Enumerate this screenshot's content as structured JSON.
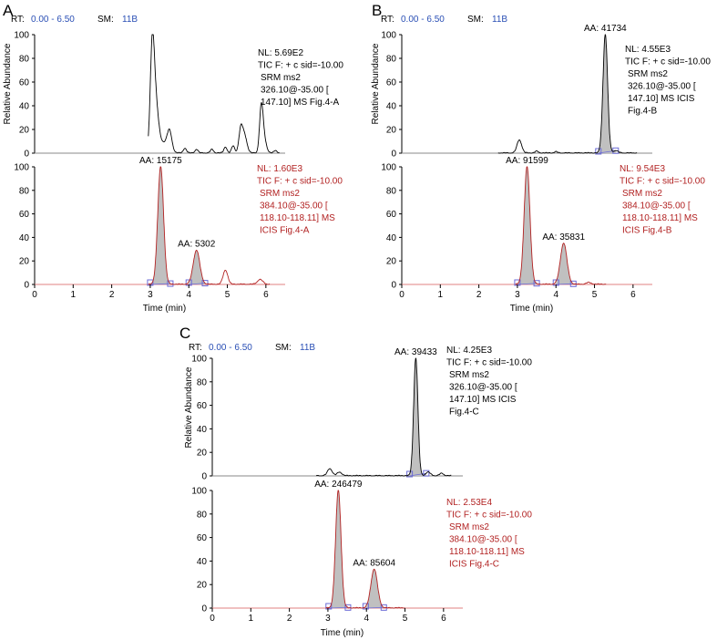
{
  "colors": {
    "black": "#000000",
    "red": "#b22222",
    "blue": "#2a4fb5",
    "fill": "#c0c0c0",
    "box": "#6b6bd6"
  },
  "chart_data": [
    {
      "panel": "A",
      "type": "line",
      "header": {
        "rt_label": "RT:",
        "rt_range": "0.00 - 6.50",
        "sm_label": "SM:",
        "sm_value": "11B"
      },
      "xlabel": "Time (min)",
      "ylabel": "Relative Abundance",
      "xlim": [
        0,
        6.5
      ],
      "ylim": [
        0,
        100
      ],
      "xticks": [
        0,
        1,
        2,
        3,
        4,
        5,
        6
      ],
      "yticks_top": [
        0,
        20,
        40,
        60,
        80,
        100
      ],
      "yticks_bottom": [
        0,
        20,
        40,
        60,
        80,
        100
      ],
      "traces": [
        {
          "name": "326.10 > 147.10",
          "info": [
            "NL: 5.69E2",
            "TIC F: + c sid=-10.00",
            "SRM ms2",
            "326.10@-35.00 [",
            "147.10]  MS Fig.4-A"
          ],
          "peaks": [
            {
              "rt": 3.05,
              "height": 68,
              "width": 0.05
            },
            {
              "rt": 3.12,
              "height": 48,
              "width": 0.08
            },
            {
              "rt": 3.5,
              "height": 16,
              "width": 0.06
            },
            {
              "rt": 3.35,
              "height": 8,
              "width": 0.12
            },
            {
              "rt": 5.35,
              "height": 20,
              "width": 0.05
            },
            {
              "rt": 5.45,
              "height": 14,
              "width": 0.06
            },
            {
              "rt": 5.88,
              "height": 36,
              "width": 0.045
            },
            {
              "rt": 5.95,
              "height": 12,
              "width": 0.06
            }
          ],
          "noise": [
            {
              "rt": 3.9,
              "height": 4
            },
            {
              "rt": 4.2,
              "height": 3
            },
            {
              "rt": 4.6,
              "height": 3
            },
            {
              "rt": 4.95,
              "height": 5
            },
            {
              "rt": 5.15,
              "height": 6
            },
            {
              "rt": 6.25,
              "height": 2
            }
          ],
          "range": [
            2.95,
            6.35
          ],
          "integrated": [],
          "annotations": []
        },
        {
          "name": "384.10 > 118.10",
          "info": [
            "NL: 1.60E3",
            "TIC F: + c sid=-10.00",
            "SRM ms2",
            "384.10@-35.00 [",
            "118.10-118.11]  MS",
            "ICIS Fig.4-A"
          ],
          "peaks": [
            {
              "rt": 3.27,
              "height": 100,
              "width": 0.075
            },
            {
              "rt": 4.2,
              "height": 29,
              "width": 0.085
            },
            {
              "rt": 4.95,
              "height": 12,
              "width": 0.06
            },
            {
              "rt": 5.85,
              "height": 4,
              "width": 0.07
            }
          ],
          "noise": [],
          "range": [
            2.95,
            6.1
          ],
          "integrated": [
            {
              "start": 3.0,
              "end": 3.52
            },
            {
              "start": 4.0,
              "end": 4.42
            }
          ],
          "annotations": [
            {
              "label": "AA: 15175",
              "rt": 3.27,
              "y": 100
            },
            {
              "label": "AA: 5302",
              "rt": 4.2,
              "y": 29
            }
          ]
        }
      ]
    },
    {
      "panel": "B",
      "type": "line",
      "header": {
        "rt_label": "RT:",
        "rt_range": "0.00 - 6.50",
        "sm_label": "SM:",
        "sm_value": "11B"
      },
      "xlabel": "Time (min)",
      "ylabel": "Relative Abundance",
      "xlim": [
        0,
        6.5
      ],
      "ylim": [
        0,
        100
      ],
      "xticks": [
        0,
        1,
        2,
        3,
        4,
        5,
        6
      ],
      "yticks_top": [
        0,
        20,
        40,
        60,
        80,
        100
      ],
      "yticks_bottom": [
        0,
        20,
        40,
        60,
        80,
        100
      ],
      "traces": [
        {
          "name": "326.10 > 147.10",
          "info": [
            "NL: 4.55E3",
            "TIC F: + c sid=-10.00",
            "SRM ms2",
            "326.10@-35.00 [",
            "147.10]  MS  ICIS",
            "Fig.4-B"
          ],
          "peaks": [
            {
              "rt": 3.05,
              "height": 11,
              "width": 0.06
            },
            {
              "rt": 5.28,
              "height": 100,
              "width": 0.06
            },
            {
              "rt": 5.55,
              "height": 2,
              "width": 0.06
            }
          ],
          "noise": [
            {
              "rt": 3.5,
              "height": 1.5
            },
            {
              "rt": 4.0,
              "height": 1
            }
          ],
          "range": [
            2.5,
            6.1
          ],
          "integrated": [
            {
              "start": 5.1,
              "end": 5.55
            }
          ],
          "annotations": [
            {
              "label": "AA: 41734",
              "rt": 5.28,
              "y": 100
            }
          ]
        },
        {
          "name": "384.10 > 118.10",
          "info": [
            "NL: 9.54E3",
            "TIC F: + c sid=-10.00",
            "SRM ms2",
            "384.10@-35.00 [",
            "118.10-118.11]  MS",
            "ICIS Fig.4-B"
          ],
          "peaks": [
            {
              "rt": 3.25,
              "height": 100,
              "width": 0.075
            },
            {
              "rt": 4.2,
              "height": 35,
              "width": 0.085
            },
            {
              "rt": 4.85,
              "height": 1.5,
              "width": 0.06
            }
          ],
          "noise": [],
          "range": [
            2.95,
            5.3
          ],
          "integrated": [
            {
              "start": 3.0,
              "end": 3.5
            },
            {
              "start": 4.0,
              "end": 4.45
            }
          ],
          "annotations": [
            {
              "label": "AA: 91599",
              "rt": 3.25,
              "y": 100
            },
            {
              "label": "AA: 35831",
              "rt": 4.2,
              "y": 35
            }
          ]
        }
      ]
    },
    {
      "panel": "C",
      "type": "line",
      "header": {
        "rt_label": "RT:",
        "rt_range": "0.00 - 6.50",
        "sm_label": "SM:",
        "sm_value": "11B"
      },
      "xlabel": "Time (min)",
      "ylabel": "Relative Abundance",
      "xlim": [
        0,
        6.5
      ],
      "ylim": [
        0,
        100
      ],
      "xticks": [
        0,
        1,
        2,
        3,
        4,
        5,
        6
      ],
      "yticks_top": [
        0,
        20,
        40,
        60,
        80,
        100
      ],
      "yticks_bottom": [
        0,
        20,
        40,
        60,
        80,
        100
      ],
      "traces": [
        {
          "name": "326.10 > 147.10",
          "info": [
            "NL: 4.25E3",
            "TIC F: + c sid=-10.00",
            "SRM ms2",
            "326.10@-35.00 [",
            "147.10]  MS  ICIS",
            "Fig.4-C"
          ],
          "peaks": [
            {
              "rt": 3.05,
              "height": 6,
              "width": 0.06
            },
            {
              "rt": 3.3,
              "height": 3,
              "width": 0.06
            },
            {
              "rt": 5.28,
              "height": 100,
              "width": 0.055
            },
            {
              "rt": 5.6,
              "height": 3,
              "width": 0.06
            },
            {
              "rt": 5.95,
              "height": 2,
              "width": 0.05
            }
          ],
          "noise": [],
          "range": [
            2.7,
            6.2
          ],
          "integrated": [
            {
              "start": 5.12,
              "end": 5.55
            }
          ],
          "annotations": [
            {
              "label": "AA: 39433",
              "rt": 5.28,
              "y": 100
            }
          ]
        },
        {
          "name": "384.10 > 118.10",
          "info": [
            "NL: 2.53E4",
            "TIC F: + c sid=-10.00",
            "SRM ms2",
            "384.10@-35.00 [",
            "118.10-118.11]  MS",
            "ICIS Fig.4-C"
          ],
          "peaks": [
            {
              "rt": 3.27,
              "height": 100,
              "width": 0.07
            },
            {
              "rt": 4.2,
              "height": 33,
              "width": 0.085
            }
          ],
          "noise": [],
          "range": [
            2.95,
            5.0
          ],
          "integrated": [
            {
              "start": 3.02,
              "end": 3.52
            },
            {
              "start": 3.98,
              "end": 4.45
            }
          ],
          "annotations": [
            {
              "label": "AA: 246479",
              "rt": 3.27,
              "y": 100
            },
            {
              "label": "AA: 85604",
              "rt": 4.2,
              "y": 33
            }
          ]
        }
      ]
    }
  ]
}
